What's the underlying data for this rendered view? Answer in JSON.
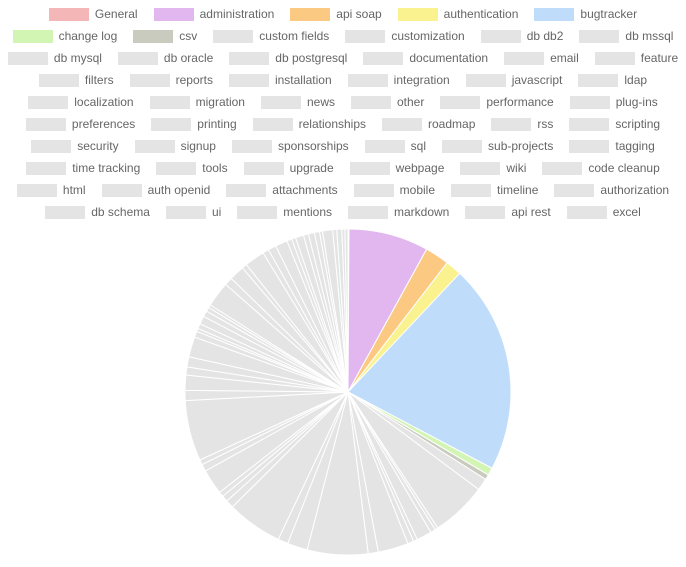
{
  "chart_data": {
    "type": "pie",
    "categories": [
      "General",
      "administration",
      "api soap",
      "authentication",
      "bugtracker",
      "change log",
      "csv",
      "custom fields",
      "customization",
      "db db2",
      "db mssql",
      "db mysql",
      "db oracle",
      "db postgresql",
      "documentation",
      "email",
      "feature",
      "filters",
      "reports",
      "installation",
      "integration",
      "javascript",
      "ldap",
      "localization",
      "migration",
      "news",
      "other",
      "performance",
      "plug-ins",
      "preferences",
      "printing",
      "relationships",
      "roadmap",
      "rss",
      "scripting",
      "security",
      "signup",
      "sponsorships",
      "sql",
      "sub-projects",
      "tagging",
      "time tracking",
      "tools",
      "upgrade",
      "webpage",
      "wiki",
      "code cleanup",
      "html",
      "auth openid",
      "attachments",
      "mobile",
      "timeline",
      "authorization",
      "db schema",
      "ui",
      "mentions",
      "markdown",
      "api rest",
      "excel"
    ],
    "values": [
      0.1,
      7.9,
      2.4,
      1.6,
      20.7,
      0.75,
      0.5,
      1.2,
      5.5,
      0.3,
      0.5,
      1.5,
      0.4,
      0.6,
      3.0,
      1.0,
      6.0,
      2.0,
      1.0,
      5.5,
      0.8,
      0.6,
      0.5,
      2.5,
      0.7,
      0.5,
      6.0,
      1.0,
      1.5,
      0.8,
      1.0,
      2.0,
      0.6,
      0.3,
      0.5,
      0.8,
      0.6,
      0.4,
      0.3,
      2.5,
      0.8,
      1.5,
      0.5,
      2.0,
      0.6,
      0.8,
      1.2,
      0.5,
      0.4,
      0.8,
      0.5,
      0.6,
      0.5,
      0.3,
      1.0,
      0.4,
      0.5,
      0.3,
      0.3
    ],
    "colors": [
      "#f4b6b6",
      "#e2b6ee",
      "#fbc982",
      "#f9f28e",
      "#c0dcfb",
      "#d2f5b4",
      "#c8cbbd",
      "#e4e4e4",
      "#e4e4e4",
      "#e4e4e4",
      "#e4e4e4",
      "#e4e4e4",
      "#e4e4e4",
      "#e4e4e4",
      "#e4e4e4",
      "#e4e4e4",
      "#e4e4e4",
      "#e4e4e4",
      "#e4e4e4",
      "#e4e4e4",
      "#e4e4e4",
      "#e4e4e4",
      "#e4e4e4",
      "#e4e4e4",
      "#e4e4e4",
      "#e4e4e4",
      "#e4e4e4",
      "#e4e4e4",
      "#e4e4e4",
      "#e4e4e4",
      "#e4e4e4",
      "#e4e4e4",
      "#e4e4e4",
      "#e4e4e4",
      "#e4e4e4",
      "#e4e4e4",
      "#e4e4e4",
      "#e4e4e4",
      "#e4e4e4",
      "#e4e4e4",
      "#e4e4e4",
      "#e4e4e4",
      "#e4e4e4",
      "#e4e4e4",
      "#e4e4e4",
      "#e4e4e4",
      "#e4e4e4",
      "#e4e4e4",
      "#e4e4e4",
      "#e4e4e4",
      "#e4e4e4",
      "#e4e4e4",
      "#e4e4e4",
      "#e4e4e4",
      "#e4e4e4",
      "#e4e4e4",
      "#e4e4e4",
      "#e4e4e4",
      "#e4e4e4"
    ]
  }
}
